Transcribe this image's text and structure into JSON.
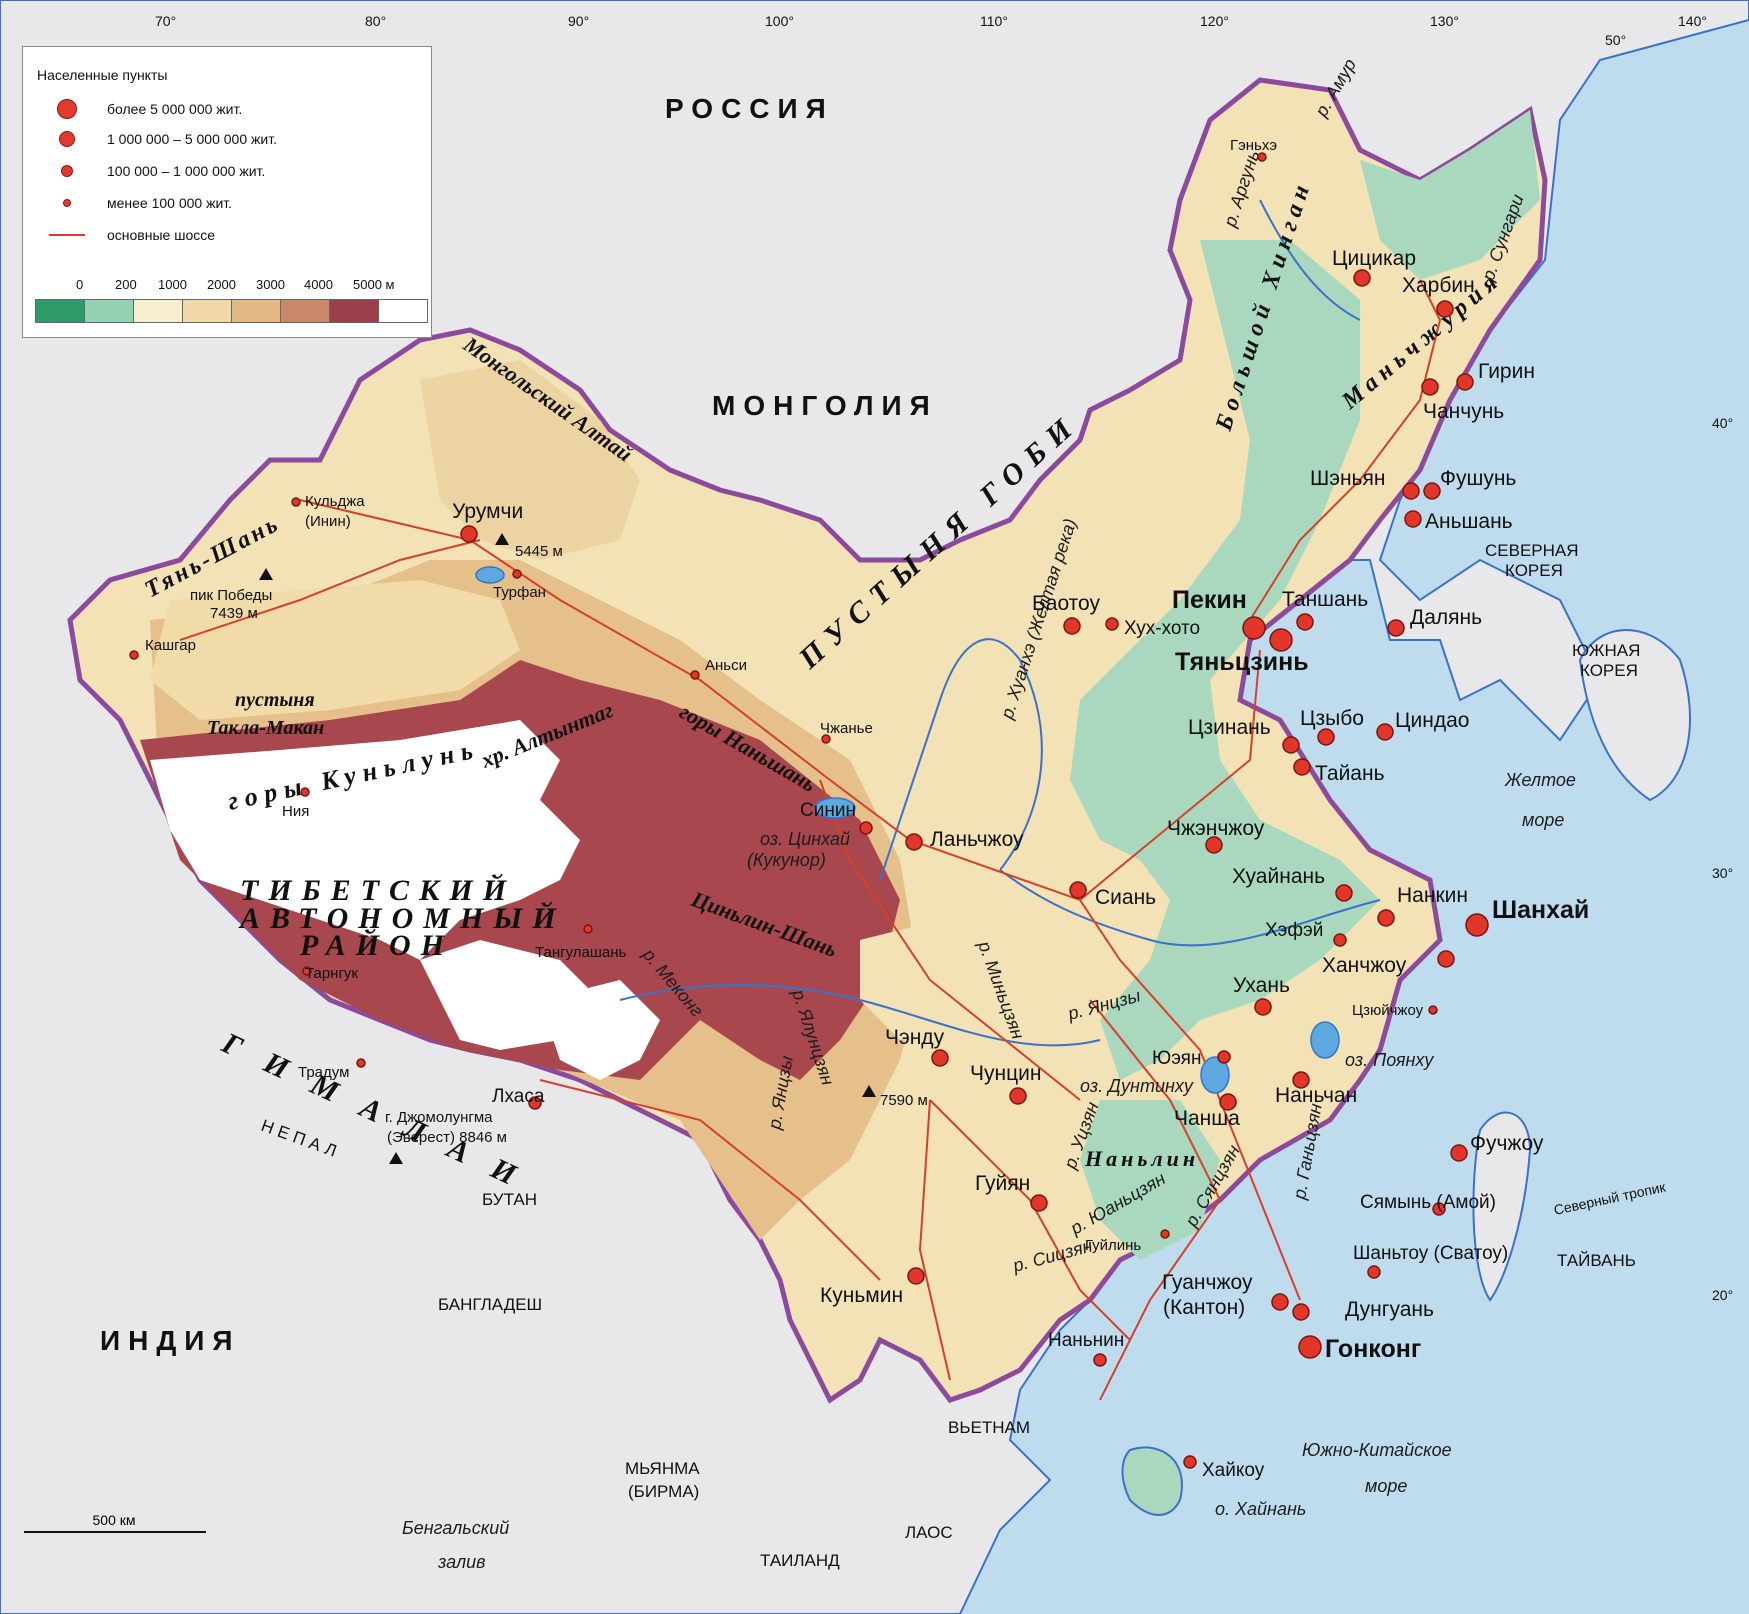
{
  "legend": {
    "title": "Населенные пункты",
    "items": [
      {
        "label": "более 5 000 000 жит.",
        "size": "largest"
      },
      {
        "label": "1 000 000 – 5 000 000 жит.",
        "size": "large"
      },
      {
        "label": "100 000 – 1 000 000 жит.",
        "size": "medium"
      },
      {
        "label": "менее 100 000 жит.",
        "size": "small"
      },
      {
        "label": "основные шоссе",
        "symbol": "road-line"
      }
    ],
    "elevation_ticks": [
      "0",
      "200",
      "1000",
      "2000",
      "3000",
      "4000",
      "5000 м"
    ],
    "elevation_colors": [
      "#2e9a6a",
      "#93d1b3",
      "#f6efcf",
      "#f0d9a6",
      "#e1b884",
      "#c9886a",
      "#9c3e48",
      "#ffffff"
    ]
  },
  "scale": {
    "label": "500 км"
  },
  "graticule": {
    "longitudes": [
      "70°",
      "80°",
      "90°",
      "100°",
      "110°",
      "120°",
      "130°",
      "140°"
    ],
    "latitudes": [
      "50°",
      "40°",
      "30°",
      "20°"
    ],
    "tropic": "Северный тропик"
  },
  "countries": {
    "russia": "РОССИЯ",
    "mongolia": "МОНГОЛИЯ",
    "india": "ИНДИЯ",
    "nepal": "НЕПАЛ",
    "bhutan": "БУТАН",
    "bangladesh": "БАНГЛАДЕШ",
    "myanmar": "МЬЯНМА",
    "myanmar2": "(БИРМА)",
    "laos": "ЛАОС",
    "thailand": "ТАИЛАНД",
    "vietnam": "ВЬЕТНАМ",
    "north_korea": "СЕВЕРНАЯ",
    "north_korea2": "КОРЕЯ",
    "south_korea": "ЮЖНАЯ",
    "south_korea2": "КОРЕЯ",
    "taiwan": "ТАЙВАНЬ"
  },
  "regions": {
    "tibet1": "ТИБЕТСКИЙ",
    "tibet2": "АВТОНОМНЫЙ",
    "tibet3": "РАЙОН",
    "gobi": "ПУСТЫНЯ ГОБИ",
    "mongol_altai": "Монгольский Алтай",
    "tianshan": "Тянь-Шань",
    "kunlun": "горы Куньлунь",
    "altyn": "хр. Алтынтаг",
    "nanshan": "горы Наньшань",
    "qinling": "Циньлин-Шань",
    "himalaya": "ГИМАЛАИ",
    "big_khingan": "Большой Хинган",
    "manchuria": "Маньчжурия",
    "nanling": "Наньлин",
    "takla1": "пустыня",
    "takla2": "Такла-Макан"
  },
  "water": {
    "yellow_sea1": "Желтое",
    "yellow_sea2": "море",
    "south_china_sea1": "Южно-Китайское",
    "south_china_sea2": "море",
    "bengal1": "Бенгальский",
    "bengal2": "залив",
    "hainan": "о. Хайнань",
    "amur": "р. Амур",
    "argun": "р. Аргунь",
    "sungari": "р. Сунгари",
    "huanghe": "р. Хуанхэ (Желтая река)",
    "yangtze": "р. Янцзы",
    "yangtze2": "р. Янцзы",
    "minjiang": "р. Миньцзян",
    "mekong": "р. Меконг",
    "yalong": "р. Ялунцзян",
    "wujiang": "р. Уцзян",
    "xijiang": "р. Сицзян",
    "yuanjiang": "р. Юаньцзян",
    "xiangjiang": "р. Сянцзян",
    "ganjiang": "р. Ганьцзян",
    "kukunor1": "оз. Цинхай",
    "kukunor2": "(Кукунор)",
    "dongting": "оз. Дунтинху",
    "poyang": "оз. Поянху"
  },
  "peaks": {
    "pobedy1": "пик Победы",
    "pobedy2": "7439 м",
    "turfan_peak": "5445 м",
    "everest1": "г. Джомолунгма",
    "everest2": "(Эверест) 8846 м",
    "gongga": "7590 м"
  },
  "cities": [
    {
      "name": "Пекин",
      "tier": "largest"
    },
    {
      "name": "Тяньцзинь",
      "tier": "largest"
    },
    {
      "name": "Шанхай",
      "tier": "largest"
    },
    {
      "name": "Гонконг",
      "tier": "largest"
    },
    {
      "name": "Харбин",
      "tier": "large"
    },
    {
      "name": "Цицикар",
      "tier": "large"
    },
    {
      "name": "Гирин",
      "tier": "large"
    },
    {
      "name": "Чанчунь",
      "tier": "large"
    },
    {
      "name": "Шэньян",
      "tier": "large"
    },
    {
      "name": "Фушунь",
      "tier": "large"
    },
    {
      "name": "Аньшань",
      "tier": "large"
    },
    {
      "name": "Далянь",
      "tier": "large"
    },
    {
      "name": "Таншань",
      "tier": "large"
    },
    {
      "name": "Баотоу",
      "tier": "large"
    },
    {
      "name": "Хух-хото",
      "tier": "medium"
    },
    {
      "name": "Цзинань",
      "tier": "large"
    },
    {
      "name": "Цзыбо",
      "tier": "large"
    },
    {
      "name": "Циндао",
      "tier": "large"
    },
    {
      "name": "Тайань",
      "tier": "large"
    },
    {
      "name": "Чжэнчжоу",
      "tier": "large"
    },
    {
      "name": "Хуайнань",
      "tier": "large"
    },
    {
      "name": "Нанкин",
      "tier": "large"
    },
    {
      "name": "Хэфэй",
      "tier": "medium"
    },
    {
      "name": "Ханчжоу",
      "tier": "large"
    },
    {
      "name": "Ухань",
      "tier": "large"
    },
    {
      "name": "Цзюйчжоу",
      "tier": "small"
    },
    {
      "name": "Юэян",
      "tier": "medium"
    },
    {
      "name": "Наньчан",
      "tier": "large"
    },
    {
      "name": "Чанша",
      "tier": "large"
    },
    {
      "name": "Фучжоу",
      "tier": "large"
    },
    {
      "name": "Сямынь (Амой)",
      "tier": "medium"
    },
    {
      "name": "Шаньтоу (Сватоу)",
      "tier": "medium"
    },
    {
      "name": "Гуанчжоу",
      "tier": "large"
    },
    {
      "name": "(Кантон)",
      "tier": "large"
    },
    {
      "name": "Дунгуань",
      "tier": "large"
    },
    {
      "name": "Гуйлинь",
      "tier": "small"
    },
    {
      "name": "Наньнин",
      "tier": "medium"
    },
    {
      "name": "Хайкоу",
      "tier": "medium"
    },
    {
      "name": "Гуйян",
      "tier": "large"
    },
    {
      "name": "Куньмин",
      "tier": "large"
    },
    {
      "name": "Чунцин",
      "tier": "large"
    },
    {
      "name": "Чэнду",
      "tier": "large"
    },
    {
      "name": "Сиань",
      "tier": "large"
    },
    {
      "name": "Ланьчжоу",
      "tier": "large"
    },
    {
      "name": "Синин",
      "tier": "medium"
    },
    {
      "name": "Чжанье",
      "tier": "small"
    },
    {
      "name": "Аньси",
      "tier": "small"
    },
    {
      "name": "Урумчи",
      "tier": "large"
    },
    {
      "name": "Турфан",
      "tier": "small"
    },
    {
      "name": "Кульджа",
      "tier": "small"
    },
    {
      "name": "(Инин)",
      "tier": "small"
    },
    {
      "name": "Кашгар",
      "tier": "small"
    },
    {
      "name": "Ния",
      "tier": "small"
    },
    {
      "name": "Лхаса",
      "tier": "medium"
    },
    {
      "name": "Тангулашань",
      "tier": "small"
    },
    {
      "name": "Тарнгук",
      "tier": "small"
    },
    {
      "name": "Традум",
      "tier": "small"
    },
    {
      "name": "Гэньхэ",
      "tier": "small"
    }
  ]
}
